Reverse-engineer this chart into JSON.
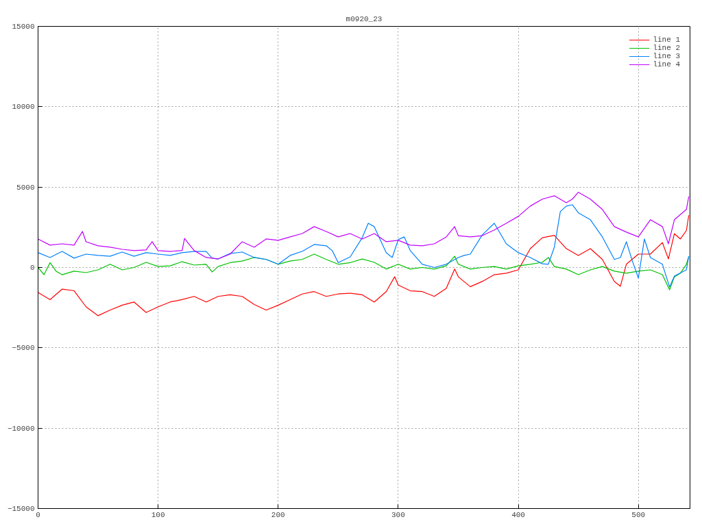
{
  "chart_data": {
    "type": "line",
    "title": "m0920_23",
    "xlim": [
      0,
      543
    ],
    "ylim": [
      -15000,
      15000
    ],
    "xticks": [
      0,
      100,
      200,
      300,
      400,
      500
    ],
    "yticks": [
      -15000,
      -10000,
      -5000,
      0,
      5000,
      10000,
      15000
    ],
    "grid": true,
    "legend": "top right",
    "line_style": "solid",
    "marker": "none",
    "series": [
      {
        "name": "line 1",
        "color": "#ff0000",
        "x": [
          0,
          10,
          20,
          30,
          40,
          50,
          60,
          70,
          80,
          90,
          100,
          110,
          120,
          130,
          140,
          150,
          160,
          170,
          180,
          190,
          200,
          210,
          220,
          230,
          240,
          250,
          260,
          270,
          280,
          290,
          297,
          300,
          310,
          320,
          330,
          340,
          347,
          350,
          360,
          370,
          380,
          390,
          400,
          410,
          420,
          430,
          440,
          450,
          460,
          470,
          480,
          485,
          490,
          500,
          510,
          520,
          525,
          530,
          535,
          540,
          542
        ],
        "values": [
          -1560,
          -2000,
          -1350,
          -1450,
          -2450,
          -3000,
          -2650,
          -2350,
          -2150,
          -2800,
          -2450,
          -2150,
          -2000,
          -1800,
          -2150,
          -1800,
          -1700,
          -1800,
          -2300,
          -2650,
          -2350,
          -2000,
          -1650,
          -1500,
          -1800,
          -1650,
          -1600,
          -1700,
          -2150,
          -1500,
          -580,
          -1100,
          -1450,
          -1500,
          -1800,
          -1300,
          -100,
          -580,
          -1200,
          -870,
          -450,
          -360,
          -150,
          1170,
          1850,
          2000,
          1170,
          750,
          1170,
          500,
          -870,
          -1170,
          200,
          830,
          830,
          1550,
          530,
          2100,
          1770,
          2300,
          3250
        ]
      },
      {
        "name": "line 2",
        "color": "#00c000",
        "x": [
          0,
          5,
          10,
          15,
          20,
          30,
          40,
          50,
          60,
          70,
          80,
          90,
          100,
          110,
          120,
          130,
          140,
          145,
          150,
          160,
          170,
          180,
          190,
          200,
          210,
          220,
          230,
          240,
          250,
          260,
          270,
          280,
          290,
          300,
          310,
          320,
          330,
          340,
          347,
          350,
          360,
          370,
          380,
          390,
          400,
          410,
          420,
          425,
          430,
          440,
          450,
          460,
          470,
          480,
          490,
          500,
          510,
          520,
          526,
          530,
          535,
          540,
          542
        ],
        "values": [
          0,
          -450,
          300,
          -230,
          -450,
          -230,
          -320,
          -150,
          200,
          -150,
          0,
          320,
          60,
          100,
          360,
          150,
          200,
          -280,
          60,
          300,
          400,
          620,
          500,
          200,
          400,
          500,
          830,
          500,
          200,
          300,
          530,
          320,
          -100,
          200,
          -100,
          0,
          -100,
          100,
          700,
          200,
          -100,
          0,
          60,
          -100,
          100,
          200,
          320,
          620,
          60,
          -100,
          -450,
          -150,
          60,
          -230,
          -360,
          -230,
          -150,
          -450,
          -1390,
          -580,
          -360,
          200,
          700
        ]
      },
      {
        "name": "line 3",
        "color": "#0080ff",
        "x": [
          0,
          10,
          20,
          30,
          40,
          50,
          60,
          70,
          80,
          90,
          100,
          110,
          120,
          130,
          140,
          145,
          150,
          160,
          170,
          180,
          190,
          200,
          210,
          220,
          230,
          240,
          245,
          250,
          260,
          270,
          275,
          280,
          290,
          295,
          300,
          305,
          310,
          320,
          330,
          340,
          350,
          355,
          360,
          370,
          380,
          385,
          390,
          400,
          410,
          420,
          425,
          430,
          435,
          440,
          445,
          450,
          460,
          470,
          480,
          485,
          490,
          495,
          500,
          505,
          510,
          520,
          526,
          530,
          540,
          542
        ],
        "values": [
          920,
          620,
          1000,
          580,
          830,
          750,
          700,
          960,
          700,
          920,
          830,
          750,
          920,
          1000,
          1000,
          580,
          530,
          870,
          960,
          620,
          500,
          200,
          750,
          1000,
          1430,
          1350,
          1050,
          300,
          660,
          1850,
          2750,
          2540,
          920,
          620,
          1730,
          1900,
          1050,
          200,
          0,
          200,
          620,
          750,
          830,
          2030,
          2750,
          2110,
          1470,
          920,
          620,
          230,
          200,
          1260,
          3480,
          3820,
          3900,
          3400,
          2970,
          1900,
          500,
          620,
          1600,
          400,
          -660,
          1770,
          620,
          200,
          -1220,
          -530,
          -150,
          700
        ]
      },
      {
        "name": "line 4",
        "color": "#c000ff",
        "x": [
          0,
          10,
          20,
          30,
          37,
          40,
          50,
          60,
          70,
          80,
          90,
          95,
          100,
          110,
          120,
          122,
          130,
          140,
          150,
          160,
          170,
          180,
          190,
          200,
          210,
          220,
          230,
          240,
          250,
          260,
          270,
          280,
          290,
          300,
          310,
          320,
          330,
          340,
          347,
          350,
          360,
          370,
          380,
          390,
          400,
          410,
          420,
          430,
          440,
          445,
          450,
          460,
          470,
          480,
          490,
          500,
          510,
          520,
          525,
          530,
          540,
          542
        ],
        "values": [
          1770,
          1390,
          1470,
          1390,
          2240,
          1600,
          1350,
          1260,
          1130,
          1050,
          1090,
          1600,
          1050,
          1000,
          1050,
          1810,
          1050,
          620,
          530,
          830,
          1600,
          1260,
          1770,
          1690,
          1900,
          2110,
          2540,
          2240,
          1900,
          2110,
          1770,
          2110,
          1600,
          1690,
          1390,
          1350,
          1470,
          1900,
          2540,
          1980,
          1900,
          1980,
          2330,
          2750,
          3180,
          3820,
          4250,
          4460,
          4030,
          4250,
          4680,
          4250,
          3610,
          2540,
          2200,
          1900,
          2970,
          2540,
          1470,
          2970,
          3610,
          4420
        ]
      }
    ]
  }
}
